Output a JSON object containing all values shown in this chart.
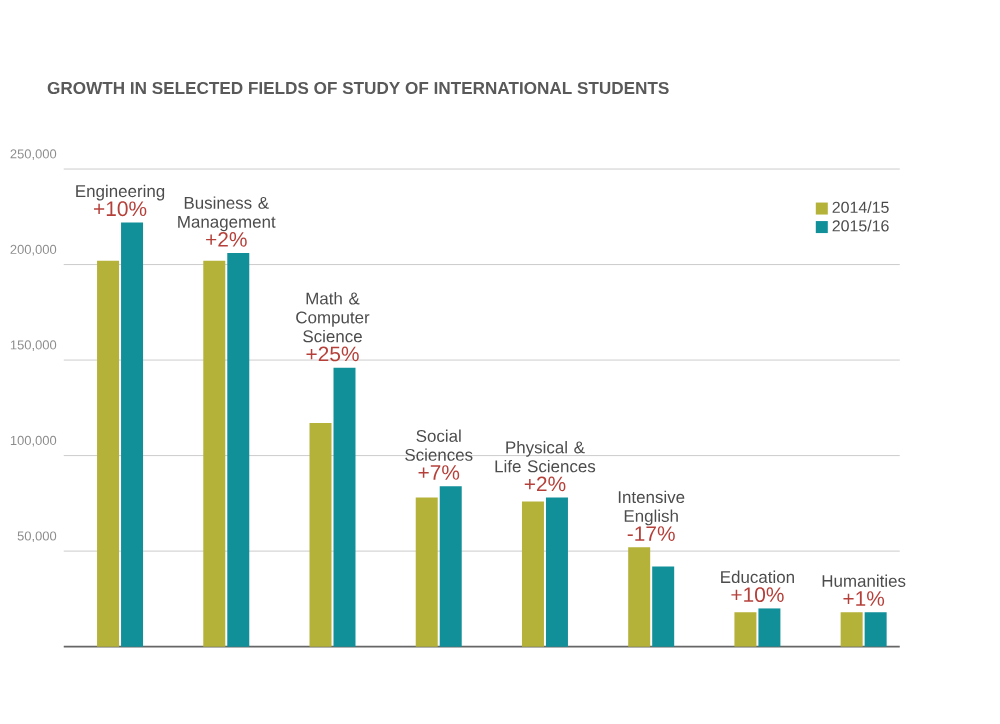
{
  "chart_data": {
    "type": "bar",
    "title": "GROWTH IN SELECTED FIELDS OF STUDY OF INTERNATIONAL STUDENTS",
    "categories": [
      "Engineering",
      "Business & Management",
      "Math & Computer Science",
      "Social Sciences",
      "Physical & Life Sciences",
      "Intensive English",
      "Education",
      "Humanities"
    ],
    "series": [
      {
        "name": "2014/15",
        "color": "#b5b23a",
        "values": [
          202000,
          202000,
          117000,
          78000,
          76000,
          52000,
          18000,
          18000
        ]
      },
      {
        "name": "2015/16",
        "color": "#12909a",
        "values": [
          222000,
          206000,
          146000,
          84000,
          78000,
          42000,
          20000,
          18000
        ]
      }
    ],
    "annotations": [
      {
        "text": "+10%",
        "x": "Engineering",
        "y": 222000
      },
      {
        "text": "+2%",
        "x": "Business & Management",
        "y": 206000
      },
      {
        "text": "+25%",
        "x": "Math & Computer Science",
        "y": 146000
      },
      {
        "text": "+7%",
        "x": "Social Sciences",
        "y": 84000
      },
      {
        "text": "+2%",
        "x": "Physical & Life Sciences",
        "y": 78000
      },
      {
        "text": "-17%",
        "x": "Intensive English",
        "y": 52000
      },
      {
        "text": "+10%",
        "x": "Education",
        "y": 20000
      },
      {
        "text": "+1%",
        "x": "Humanities",
        "y": 18000
      }
    ],
    "ylim": [
      0,
      250000
    ],
    "yticks": [
      {
        "value": 50000,
        "label": "50,000"
      },
      {
        "value": 100000,
        "label": "100,000"
      },
      {
        "value": 150000,
        "label": "150,000"
      },
      {
        "value": 200000,
        "label": "200,000"
      },
      {
        "value": 250000,
        "label": "250,000"
      }
    ],
    "grid": "y",
    "legend": "top right",
    "tick_labels": "y"
  }
}
